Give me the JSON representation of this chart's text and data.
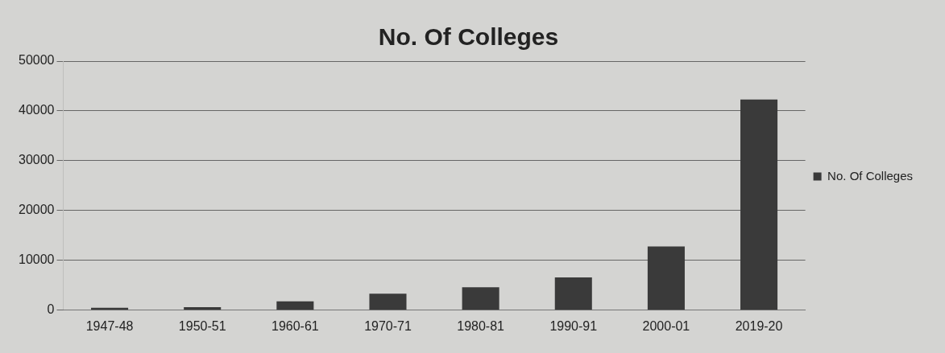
{
  "chart_data": {
    "type": "bar",
    "title": "No. Of Colleges",
    "categories": [
      "1947-48",
      "1950-51",
      "1960-61",
      "1970-71",
      "1980-81",
      "1990-91",
      "2000-01",
      "2019-20"
    ],
    "series": [
      {
        "name": "No. Of Colleges",
        "color": "#3a3a3a",
        "values": [
          500,
          600,
          1800,
          3300,
          4600,
          6600,
          12800,
          42300
        ]
      }
    ],
    "ylim": [
      0,
      50000
    ],
    "yticks": [
      0,
      10000,
      20000,
      30000,
      40000,
      50000
    ],
    "grid": "y",
    "legend": "right"
  }
}
